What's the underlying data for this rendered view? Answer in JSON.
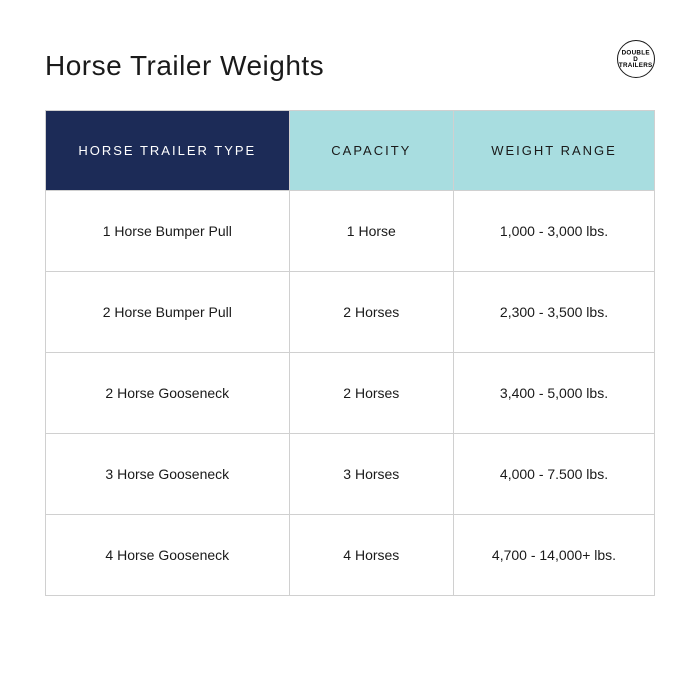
{
  "title": "Horse Trailer Weights",
  "logo_text": "DOUBLE D TRAILERS",
  "table": {
    "columns": [
      "HORSE TRAILER TYPE",
      "CAPACITY",
      "WEIGHT RANGE"
    ],
    "header_colors": {
      "type_bg": "#1c2b57",
      "type_fg": "#ffffff",
      "other_bg": "#a8dde0",
      "other_fg": "#1a1a1a"
    },
    "border_color": "#d0d0d0",
    "rows": [
      {
        "type": "1 Horse Bumper Pull",
        "capacity": "1 Horse",
        "weight": "1,000 - 3,000 lbs."
      },
      {
        "type": "2 Horse Bumper Pull",
        "capacity": "2 Horses",
        "weight": "2,300 - 3,500 lbs."
      },
      {
        "type": "2 Horse Gooseneck",
        "capacity": "2 Horses",
        "weight": "3,400 - 5,000 lbs."
      },
      {
        "type": "3 Horse Gooseneck",
        "capacity": "3 Horses",
        "weight": "4,000 - 7.500 lbs."
      },
      {
        "type": "4 Horse Gooseneck",
        "capacity": "4 Horses",
        "weight": "4,700 - 14,000+ lbs."
      }
    ]
  }
}
